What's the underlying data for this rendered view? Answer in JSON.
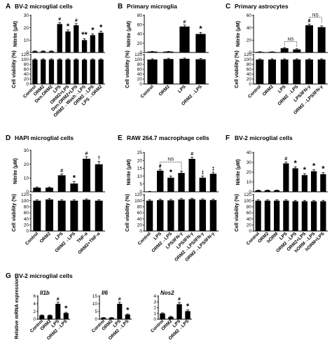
{
  "colors": {
    "bar": "#000000",
    "axis": "#000000",
    "text": "#000000"
  },
  "chart_data": [
    {
      "panel": "A",
      "title": "BV-2 microglial cells",
      "type": "bar",
      "categories": [
        "Control",
        "ORM2",
        "Den.ORM2",
        "LPS",
        "ORM2+LPS",
        "Den.ORM2+LPS",
        "ORM2→Wash→LPS",
        "ORM2→LPS",
        "LPS→ORM2"
      ],
      "top": {
        "ylabel": "Nitrite (μM)",
        "ylim": [
          0,
          30
        ],
        "yticks": [
          "0",
          "10",
          "20",
          "30"
        ],
        "values": [
          1,
          1,
          1,
          23,
          17,
          22,
          10,
          14,
          16
        ],
        "errors": [
          0.3,
          0.3,
          0.3,
          1.2,
          1.2,
          1.3,
          1.2,
          1.0,
          1.3
        ],
        "marks": [
          "",
          "",
          "",
          "#",
          "*",
          "#",
          "**",
          "*",
          "*"
        ]
      },
      "bottom": {
        "ylabel": "Cell viability (%)",
        "ylim": [
          0,
          120
        ],
        "yticks": [
          "0",
          "20",
          "40",
          "60",
          "80",
          "100",
          "120"
        ],
        "values": [
          100,
          100,
          100,
          100,
          100,
          100,
          99,
          100,
          100
        ],
        "errors": [
          3,
          3,
          3,
          3,
          3,
          3,
          3,
          3,
          3
        ]
      }
    },
    {
      "panel": "B",
      "title": "Primary microglia",
      "type": "bar",
      "categories": [
        "Control",
        "ORM2",
        "LPS",
        "ORM2→LPS"
      ],
      "top": {
        "ylabel": "Nitrite (μM)",
        "ylim": [
          0,
          80
        ],
        "yticks": [
          "0",
          "20",
          "40",
          "60",
          "80"
        ],
        "values": [
          2,
          2,
          56,
          40
        ],
        "errors": [
          0.5,
          0.5,
          3,
          3
        ],
        "marks": [
          "",
          "",
          "#",
          "*"
        ]
      },
      "bottom": {
        "ylabel": "Cell viability (%)",
        "ylim": [
          0,
          120
        ],
        "yticks": [
          "0",
          "20",
          "40",
          "60",
          "80",
          "100",
          "120"
        ],
        "values": [
          100,
          102,
          103,
          101
        ],
        "errors": [
          3,
          3,
          3,
          3
        ]
      }
    },
    {
      "panel": "C",
      "title": "Primary astrocytes",
      "type": "bar",
      "categories": [
        "Control",
        "ORM2",
        "LPS",
        "ORM2→LPS",
        "LPS/IFN-γ",
        "ORM2→LPS/IFN-γ"
      ],
      "top": {
        "ylabel": "Nitrite (μM)",
        "ylim": [
          0,
          60
        ],
        "yticks": [
          "0",
          "20",
          "40",
          "60"
        ],
        "values": [
          1,
          1,
          7,
          5,
          44,
          41
        ],
        "errors": [
          0.3,
          0.3,
          1,
          1,
          2,
          2
        ],
        "marks": [
          "",
          "",
          "",
          "",
          "#",
          ""
        ],
        "ns_label": "NS"
      },
      "bottom": {
        "ylabel": "Cell viability (%)",
        "ylim": [
          0,
          120
        ],
        "yticks": [
          "0",
          "20",
          "40",
          "60",
          "80",
          "100",
          "120"
        ],
        "values": [
          100,
          100,
          100,
          100,
          100,
          100
        ],
        "errors": [
          3,
          3,
          3,
          3,
          3,
          3
        ]
      }
    },
    {
      "panel": "D",
      "title": "HAPI microglial cells",
      "type": "bar",
      "categories": [
        "Control",
        "ORM2",
        "LPS",
        "ORM2→LPS",
        "TNF-α",
        "ORM2+TNF-α"
      ],
      "top": {
        "ylabel": "Nitrite (μM)",
        "ylim": [
          0,
          30
        ],
        "yticks": [
          "0",
          "10",
          "20",
          "30"
        ],
        "values": [
          3,
          3,
          12,
          6,
          24,
          20
        ],
        "errors": [
          0.5,
          0.5,
          1,
          1.5,
          1.5,
          2
        ],
        "marks": [
          "",
          "",
          "#",
          "*",
          "#",
          "†"
        ]
      },
      "bottom": {
        "ylabel": "Cell viability (%)",
        "ylim": [
          0,
          120
        ],
        "yticks": [
          "0",
          "20",
          "40",
          "60",
          "80",
          "100",
          "120"
        ],
        "values": [
          100,
          104,
          100,
          100,
          103,
          100
        ],
        "errors": [
          3,
          3,
          3,
          3,
          3,
          3
        ]
      }
    },
    {
      "panel": "E",
      "title": "RAW 264.7 macrophage cells",
      "type": "bar",
      "categories": [
        "Control",
        "LPS",
        "ORM2→LPS",
        "LPS/IFN-γ",
        "LPS/IFN-γ",
        "ORM2→LPS/IFN-γ",
        "ORM2→LPS/IFN-γ"
      ],
      "top": {
        "ylabel": "Nitrite (μM)",
        "ylim": [
          0,
          25
        ],
        "yticks": [
          "0",
          "5",
          "10",
          "15",
          "20",
          "25"
        ],
        "values": [
          0.2,
          13.5,
          9,
          12,
          21,
          9,
          11.5
        ],
        "errors": [
          0.1,
          0.8,
          1,
          1,
          1,
          1,
          1
        ],
        "marks": [
          "",
          "#",
          "*",
          "",
          "#",
          "‡",
          "‡"
        ],
        "ns_label": "NS"
      },
      "bottom": {
        "ylabel": "Cell viability (%)",
        "ylim": [
          0,
          120
        ],
        "yticks": [
          "0",
          "20",
          "40",
          "60",
          "80",
          "100",
          "120"
        ],
        "values": [
          100,
          102,
          101,
          104,
          105,
          103,
          102
        ],
        "errors": [
          3,
          3,
          3,
          3,
          3,
          3,
          3
        ]
      }
    },
    {
      "panel": "F",
      "title": "BV-2 microglial cells",
      "type": "bar",
      "categories": [
        "Control",
        "ORM2",
        "hORM",
        "LPS",
        "ORM2→LPS",
        "ORM2+LPS",
        "hORM→LPS",
        "hORM+LPS"
      ],
      "top": {
        "ylabel": "Nitrite (μM)",
        "ylim": [
          0,
          40
        ],
        "yticks": [
          "0",
          "10",
          "20",
          "30",
          "40"
        ],
        "values": [
          1.5,
          1.5,
          1.5,
          29,
          24,
          17,
          21,
          18
        ],
        "errors": [
          0.3,
          0.3,
          0.3,
          1.5,
          1.5,
          1.5,
          1.5,
          1.5
        ],
        "marks": [
          "",
          "",
          "",
          "#",
          "*",
          "*",
          "*",
          "*"
        ]
      },
      "bottom": {
        "ylabel": "Cell viability (%)",
        "ylim": [
          0,
          120
        ],
        "yticks": [
          "0",
          "20",
          "40",
          "60",
          "80",
          "100",
          "120"
        ],
        "values": [
          100,
          100,
          100,
          100,
          98,
          98,
          98,
          98
        ],
        "errors": [
          3,
          3,
          3,
          3,
          3,
          3,
          3,
          3
        ]
      }
    },
    {
      "panel": "G",
      "title": "BV-2 microglial cells",
      "type": "bar",
      "ylabel": "Relative mRNA expression",
      "subplots": [
        {
          "gene": "Il1b",
          "categories": [
            "Control",
            "ORM2",
            "LPS",
            "ORM2→LPS"
          ],
          "ylim": [
            0,
            6
          ],
          "yticks": [
            "0",
            "2",
            "4",
            "6"
          ],
          "values": [
            1,
            1,
            4,
            1.6
          ],
          "errors": [
            0.1,
            0.1,
            0.4,
            0.2
          ],
          "marks": [
            "",
            "",
            "#",
            "*"
          ]
        },
        {
          "gene": "Il6",
          "categories": [
            "Control",
            "ORM2",
            "LPS",
            "ORM2→LPS"
          ],
          "ylim": [
            0,
            15
          ],
          "yticks": [
            "0",
            "5",
            "10",
            "15"
          ],
          "values": [
            1,
            1,
            10,
            3
          ],
          "errors": [
            0.1,
            0.1,
            1,
            0.4
          ],
          "marks": [
            "",
            "",
            "#",
            "*"
          ]
        },
        {
          "gene": "Nos2",
          "categories": [
            "Control",
            "ORM2",
            "LPS",
            "ORM2→LPS"
          ],
          "ylim": [
            0,
            4
          ],
          "yticks": [
            "0",
            "1",
            "2",
            "3",
            "4"
          ],
          "values": [
            1,
            0.4,
            2.6,
            1.4
          ],
          "errors": [
            0.1,
            0.1,
            0.3,
            0.2
          ],
          "marks": [
            "",
            "",
            "#",
            "*"
          ]
        }
      ]
    }
  ]
}
